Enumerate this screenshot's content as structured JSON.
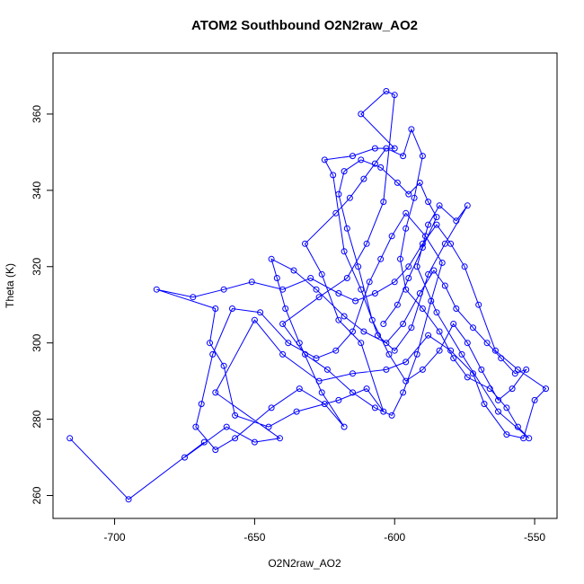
{
  "chart_data": {
    "type": "scatter",
    "title": "ATOM2 Southbound O2N2raw_AO2",
    "xlabel": "O2N2raw_AO2",
    "ylabel": "Theta (K)",
    "xlim": [
      -722,
      -542
    ],
    "ylim": [
      254,
      376
    ],
    "xticks": [
      -700,
      -650,
      -600,
      -550
    ],
    "yticks": [
      260,
      280,
      300,
      320,
      340,
      360
    ],
    "grid": false,
    "legend": "none",
    "series_color": "#0000ff",
    "series": [
      {
        "values": [
          [
            -716,
            275
          ],
          [
            -695,
            259
          ],
          [
            -668,
            274
          ],
          [
            -675,
            270
          ],
          [
            -660,
            278
          ],
          [
            -650,
            274
          ],
          [
            -641,
            275
          ],
          [
            -664,
            287
          ],
          [
            -650,
            306
          ],
          [
            -640,
            297
          ],
          [
            -627,
            290
          ],
          [
            -615,
            292
          ],
          [
            -603,
            293
          ],
          [
            -596,
            295
          ],
          [
            -588,
            302
          ],
          [
            -580,
            298
          ],
          [
            -572,
            292
          ],
          [
            -568,
            284
          ],
          [
            -560,
            276
          ],
          [
            -554,
            275
          ],
          [
            -550,
            285
          ],
          [
            -546,
            288
          ],
          [
            -556,
            293
          ],
          [
            -564,
            298
          ],
          [
            -570,
            310
          ],
          [
            -575,
            320
          ],
          [
            -580,
            326
          ],
          [
            -585,
            331
          ],
          [
            -590,
            326
          ],
          [
            -595,
            320
          ],
          [
            -600,
            316
          ],
          [
            -607,
            313
          ],
          [
            -614,
            311
          ],
          [
            -620,
            313
          ],
          [
            -630,
            317
          ],
          [
            -640,
            314
          ],
          [
            -651,
            316
          ],
          [
            -661,
            314
          ],
          [
            -672,
            312
          ],
          [
            -685,
            314
          ],
          [
            -664,
            309
          ],
          [
            -666,
            300
          ],
          [
            -661,
            294
          ],
          [
            -657,
            281
          ],
          [
            -645,
            278
          ],
          [
            -635,
            282
          ],
          [
            -620,
            285
          ],
          [
            -610,
            288
          ],
          [
            -604,
            282
          ],
          [
            -612,
            300
          ],
          [
            -620,
            306
          ],
          [
            -626,
            318
          ],
          [
            -632,
            326
          ],
          [
            -621,
            334
          ],
          [
            -616,
            338
          ],
          [
            -611,
            343
          ],
          [
            -607,
            347
          ],
          [
            -603,
            351
          ],
          [
            -597,
            349
          ],
          [
            -594,
            356
          ],
          [
            -590,
            349
          ],
          [
            -593,
            338
          ],
          [
            -596,
            330
          ],
          [
            -598,
            322
          ],
          [
            -596,
            314
          ],
          [
            -590,
            309
          ],
          [
            -584,
            303
          ],
          [
            -579,
            296
          ],
          [
            -574,
            291
          ],
          [
            -566,
            288
          ],
          [
            -560,
            283
          ],
          [
            -556,
            278
          ],
          [
            -552,
            275
          ],
          [
            -563,
            282
          ],
          [
            -576,
            297
          ],
          [
            -585,
            308
          ],
          [
            -592,
            320
          ],
          [
            -588,
            331
          ],
          [
            -584,
            336
          ],
          [
            -578,
            332
          ],
          [
            -574,
            336
          ],
          [
            -582,
            326
          ],
          [
            -588,
            318
          ],
          [
            -594,
            304
          ],
          [
            -600,
            298
          ],
          [
            -606,
            302
          ],
          [
            -612,
            314
          ],
          [
            -618,
            324
          ],
          [
            -622,
            344
          ],
          [
            -625,
            348
          ],
          [
            -615,
            349
          ],
          [
            -607,
            351
          ],
          [
            -600,
            351
          ],
          [
            -612,
            360
          ],
          [
            -603,
            366
          ],
          [
            -600,
            365
          ],
          [
            -604,
            337
          ],
          [
            -610,
            326
          ],
          [
            -617,
            317
          ],
          [
            -627,
            312
          ],
          [
            -640,
            305
          ],
          [
            -632,
            297
          ],
          [
            -624,
            293
          ],
          [
            -615,
            287
          ],
          [
            -607,
            283
          ],
          [
            -601,
            281
          ],
          [
            -597,
            287
          ],
          [
            -592,
            297
          ],
          [
            -587,
            311
          ],
          [
            -583,
            321
          ],
          [
            -589,
            328
          ],
          [
            -596,
            334
          ],
          [
            -601,
            328
          ],
          [
            -605,
            322
          ],
          [
            -609,
            316
          ],
          [
            -615,
            303
          ],
          [
            -621,
            298
          ],
          [
            -628,
            296
          ],
          [
            -638,
            300
          ],
          [
            -648,
            308
          ],
          [
            -658,
            309
          ],
          [
            -665,
            297
          ],
          [
            -669,
            284
          ],
          [
            -671,
            278
          ],
          [
            -664,
            272
          ],
          [
            -657,
            275
          ],
          [
            -644,
            283
          ],
          [
            -634,
            288
          ],
          [
            -625,
            284
          ],
          [
            -618,
            278
          ],
          [
            -626,
            287
          ],
          [
            -634,
            300
          ],
          [
            -639,
            309
          ],
          [
            -642,
            317
          ],
          [
            -644,
            322
          ],
          [
            -636,
            319
          ],
          [
            -628,
            314
          ],
          [
            -618,
            307
          ],
          [
            -611,
            303
          ],
          [
            -603,
            300
          ],
          [
            -597,
            305
          ],
          [
            -591,
            313
          ],
          [
            -586,
            319
          ],
          [
            -582,
            315
          ],
          [
            -578,
            309
          ],
          [
            -572,
            304
          ],
          [
            -567,
            300
          ],
          [
            -562,
            296
          ],
          [
            -557,
            292
          ],
          [
            -553,
            293
          ],
          [
            -558,
            288
          ],
          [
            -563,
            285
          ],
          [
            -569,
            293
          ],
          [
            -574,
            300
          ],
          [
            -579,
            305
          ],
          [
            -584,
            298
          ],
          [
            -590,
            293
          ],
          [
            -596,
            290
          ],
          [
            -602,
            297
          ],
          [
            -608,
            306
          ],
          [
            -613,
            320
          ],
          [
            -617,
            330
          ],
          [
            -620,
            339
          ],
          [
            -618,
            345
          ],
          [
            -612,
            348
          ],
          [
            -605,
            346
          ],
          [
            -599,
            342
          ],
          [
            -595,
            339
          ],
          [
            -591,
            342
          ],
          [
            -588,
            337
          ],
          [
            -585,
            333
          ],
          [
            -590,
            325
          ],
          [
            -595,
            317
          ],
          [
            -599,
            310
          ],
          [
            -604,
            305
          ]
        ]
      }
    ]
  }
}
